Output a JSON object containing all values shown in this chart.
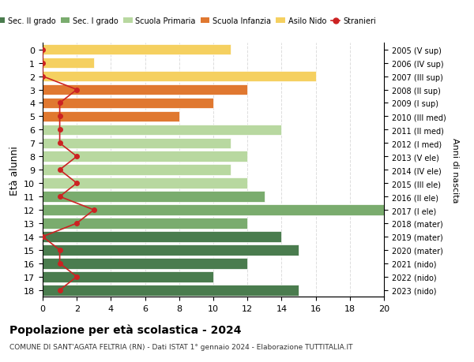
{
  "ages": [
    18,
    17,
    16,
    15,
    14,
    13,
    12,
    11,
    10,
    9,
    8,
    7,
    6,
    5,
    4,
    3,
    2,
    1,
    0
  ],
  "years": [
    "2005 (V sup)",
    "2006 (IV sup)",
    "2007 (III sup)",
    "2008 (II sup)",
    "2009 (I sup)",
    "2010 (III med)",
    "2011 (II med)",
    "2012 (I med)",
    "2013 (V ele)",
    "2014 (IV ele)",
    "2015 (III ele)",
    "2016 (II ele)",
    "2017 (I ele)",
    "2018 (mater)",
    "2019 (mater)",
    "2020 (mater)",
    "2021 (nido)",
    "2022 (nido)",
    "2023 (nido)"
  ],
  "bar_values": [
    15,
    10,
    12,
    15,
    14,
    12,
    20,
    13,
    12,
    11,
    12,
    11,
    14,
    8,
    10,
    12,
    16,
    3,
    11
  ],
  "bar_colors": [
    "#4a7c4e",
    "#4a7c4e",
    "#4a7c4e",
    "#4a7c4e",
    "#4a7c4e",
    "#7aac6e",
    "#7aac6e",
    "#7aac6e",
    "#b8d8a0",
    "#b8d8a0",
    "#b8d8a0",
    "#b8d8a0",
    "#b8d8a0",
    "#e07830",
    "#e07830",
    "#e07830",
    "#f5d060",
    "#f5d060",
    "#f5d060"
  ],
  "stranieri": [
    1,
    2,
    1,
    1,
    0,
    2,
    3,
    1,
    2,
    1,
    2,
    1,
    1,
    1,
    1,
    2,
    0,
    0,
    0
  ],
  "legend_labels": [
    "Sec. II grado",
    "Sec. I grado",
    "Scuola Primaria",
    "Scuola Infanzia",
    "Asilo Nido",
    "Stranieri"
  ],
  "legend_colors": [
    "#4a7c4e",
    "#7aac6e",
    "#b8d8a0",
    "#e07830",
    "#f5d060",
    "#cc2222"
  ],
  "ylabel": "Età alunni",
  "ylabel_right": "Anni di nascita",
  "title": "Popolazione per età scolastica - 2024",
  "subtitle": "COMUNE DI SANT'AGATA FELTRIA (RN) - Dati ISTAT 1° gennaio 2024 - Elaborazione TUTTITALIA.IT",
  "xlim": [
    0,
    20
  ],
  "xticks": [
    0,
    2,
    4,
    6,
    8,
    10,
    12,
    14,
    16,
    18,
    20
  ],
  "background_color": "#ffffff",
  "grid_color": "#dddddd"
}
